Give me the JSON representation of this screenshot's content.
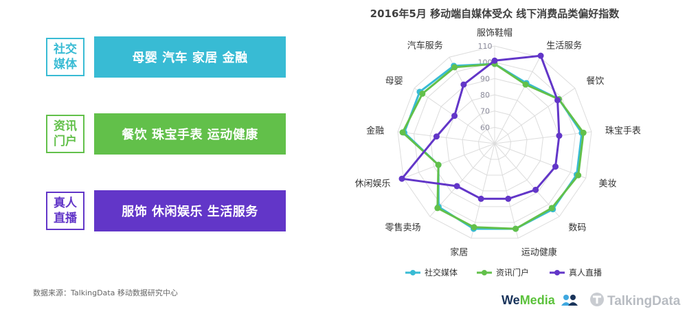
{
  "rows": [
    {
      "tag": "社交媒体",
      "text": "母婴 汽车 家居 金融",
      "color": "#38bbd4"
    },
    {
      "tag": "资讯门户",
      "text": "餐饮 珠宝手表 运动健康",
      "color": "#62c04a"
    },
    {
      "tag": "真人直播",
      "text": "服饰 休闲娱乐 生活服务",
      "color": "#6236c8"
    }
  ],
  "source": "数据来源：TalkingData 移动数据研究中心",
  "logos": {
    "wemedia_a": "We",
    "wemedia_b": "Media",
    "talkingdata": "TalkingData"
  },
  "chart_data": {
    "type": "radar",
    "title": "2016年5月 移动端自媒体受众 线下消费品类偏好指数",
    "categories": [
      "服饰鞋帽",
      "生活服务",
      "餐饮",
      "珠宝手表",
      "美妆",
      "数码",
      "运动健康",
      "家居",
      "零售卖场",
      "休闲娱乐",
      "金融",
      "母婴",
      "汽车服务"
    ],
    "radial_ticks": [
      60,
      70,
      80,
      90,
      100,
      110
    ],
    "rlim": [
      50,
      110
    ],
    "legend_position": "bottom",
    "series": [
      {
        "name": "社交媒体",
        "color": "#38bbd4",
        "values": [
          99,
          92,
          98,
          104,
          104,
          104,
          104,
          104,
          102,
          87,
          106,
          106,
          104
        ]
      },
      {
        "name": "资讯门户",
        "color": "#62c04a",
        "values": [
          99,
          91,
          98,
          105,
          105,
          103,
          104,
          103,
          103,
          87,
          107,
          104,
          103
        ]
      },
      {
        "name": "真人直播",
        "color": "#6236c8",
        "values": [
          101,
          111,
          97,
          90,
          90,
          88,
          85,
          85,
          85,
          111,
          86,
          80,
          91
        ]
      }
    ]
  }
}
